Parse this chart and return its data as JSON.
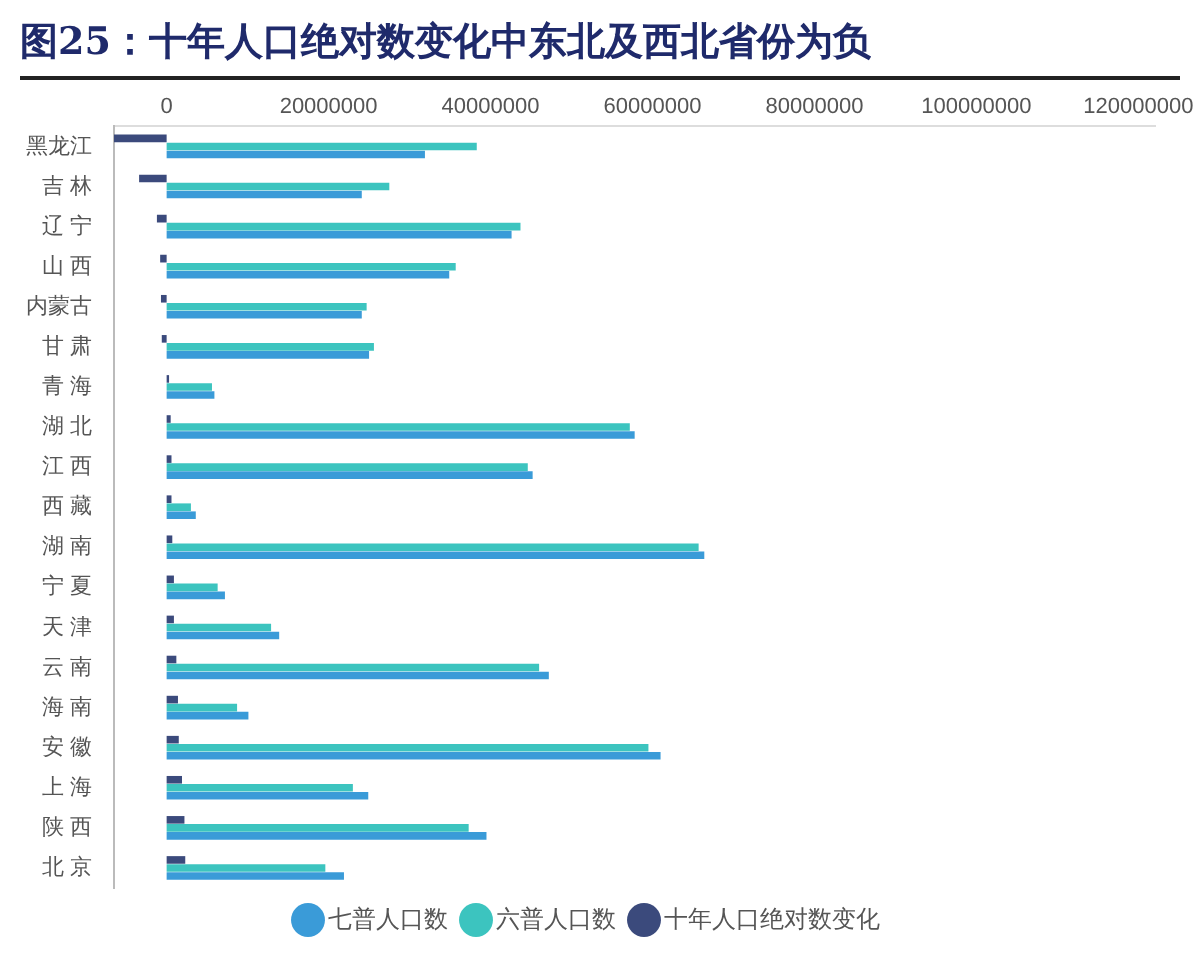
{
  "chart_data": {
    "type": "bar",
    "orientation": "horizontal",
    "title": "图25：十年人口绝对数变化中东北及西北省份为负",
    "categories": [
      "黑龙江",
      "吉 林",
      "辽 宁",
      "山 西",
      "内蒙古",
      "甘 肃",
      "青 海",
      "湖 北",
      "江 西",
      "西 藏",
      "湖 南",
      "宁 夏",
      "天 津",
      "云 南",
      "海 南",
      "安 徽",
      "上 海",
      "陕 西",
      "北 京"
    ],
    "series": [
      {
        "name": "十年人口绝对数变化",
        "color": "#3b4a7c",
        "values": [
          -6500000,
          -3400000,
          -1200000,
          -800000,
          -700000,
          -600000,
          300000,
          500000,
          600000,
          600000,
          700000,
          900000,
          900000,
          1200000,
          1400000,
          1500000,
          1900000,
          2200000,
          2300000
        ]
      },
      {
        "name": "六普人口数",
        "color": "#3cc4bf",
        "values": [
          38300000,
          27500000,
          43700000,
          35700000,
          24700000,
          25600000,
          5600000,
          57200000,
          44600000,
          3000000,
          65700000,
          6300000,
          12900000,
          46000000,
          8700000,
          59500000,
          23000000,
          37300000,
          19600000
        ]
      },
      {
        "name": "七普人口数",
        "color": "#3a9bd8",
        "values": [
          31900000,
          24100000,
          42600000,
          34900000,
          24100000,
          25000000,
          5900000,
          57800000,
          45200000,
          3600000,
          66400000,
          7200000,
          13900000,
          47200000,
          10100000,
          61000000,
          24900000,
          39500000,
          21900000
        ]
      }
    ],
    "xlim": [
      -6500000,
      122000000
    ],
    "xticks": [
      0,
      20000000,
      40000000,
      60000000,
      80000000,
      100000000,
      120000000
    ],
    "grid": false,
    "legend": "bottom"
  }
}
